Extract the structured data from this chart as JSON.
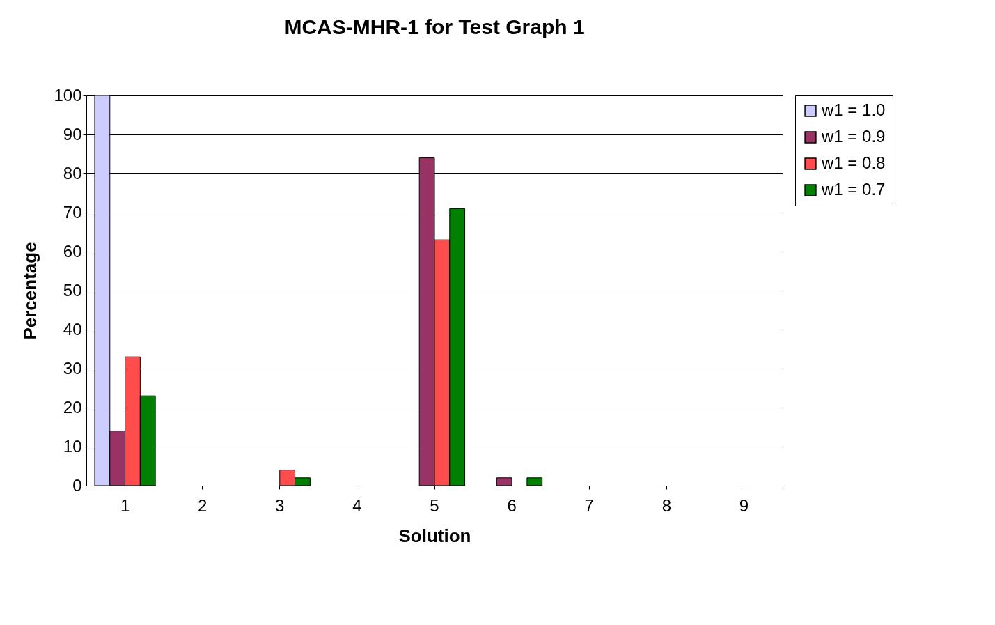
{
  "chart_data": {
    "type": "bar",
    "title": "MCAS-MHR-1 for Test Graph 1",
    "xlabel": "Solution",
    "ylabel": "Percentage",
    "categories": [
      "1",
      "2",
      "3",
      "4",
      "5",
      "6",
      "7",
      "8",
      "9"
    ],
    "series": [
      {
        "name": "w1 = 1.0",
        "color": "#ccccff",
        "values": [
          100,
          0,
          0,
          0,
          0,
          0,
          0,
          0,
          0
        ]
      },
      {
        "name": "w1 = 0.9",
        "color": "#993366",
        "values": [
          14,
          0,
          0,
          0,
          84,
          2,
          0,
          0,
          0
        ]
      },
      {
        "name": "w1 = 0.8",
        "color": "#ff4d4d",
        "values": [
          33,
          0,
          4,
          0,
          63,
          0,
          0,
          0,
          0
        ]
      },
      {
        "name": "w1 = 0.7",
        "color": "#008000",
        "values": [
          23,
          0,
          2,
          0,
          71,
          2,
          0,
          0,
          0
        ]
      }
    ],
    "ylim": [
      0,
      100
    ],
    "yticks": [
      0,
      10,
      20,
      30,
      40,
      50,
      60,
      70,
      80,
      90,
      100
    ],
    "grid": "y",
    "legend": "right"
  }
}
